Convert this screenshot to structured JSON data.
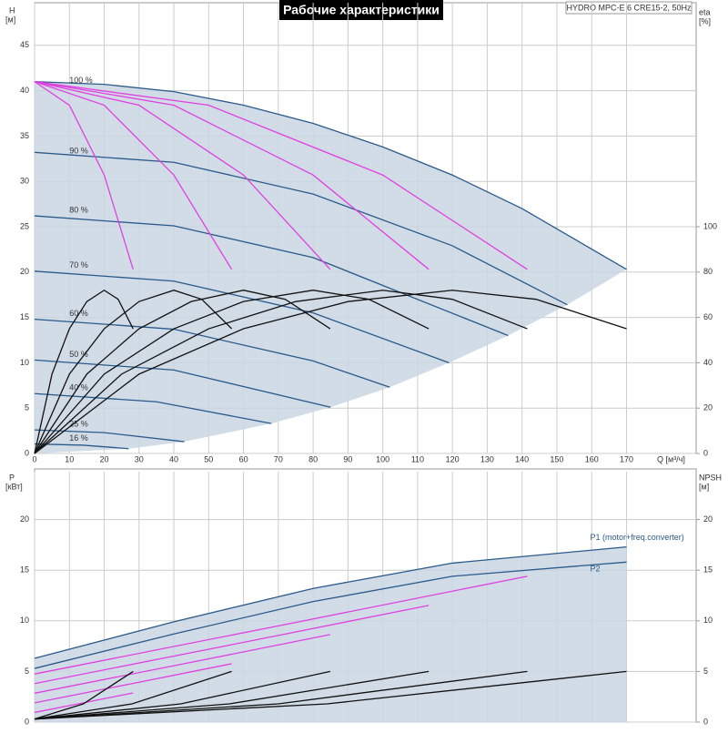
{
  "chart_data": [
    {
      "type": "line",
      "title": "Рабочие характеристики",
      "annotation": "HYDRO MPC-E 6 CRE15-2, 50Hz",
      "ylabel": "H",
      "yunit": "[м]",
      "y2label": "eta",
      "y2unit": "[%]",
      "xlabel": "Q [м³/ч]",
      "xlim": [
        0,
        190
      ],
      "xticks": [
        0,
        10,
        20,
        30,
        40,
        50,
        60,
        70,
        80,
        90,
        100,
        110,
        120,
        130,
        140,
        150,
        160,
        170
      ],
      "ylim": [
        0,
        50
      ],
      "yticks": [
        0,
        5,
        10,
        15,
        20,
        25,
        30,
        35,
        40,
        45
      ],
      "y2lim": [
        0,
        200
      ],
      "y2ticks": [
        0,
        20,
        40,
        60,
        80,
        100
      ],
      "grid": true,
      "series": [
        {
          "name": "100 %",
          "color": "#2a5a8a",
          "x": [
            0,
            20,
            40,
            60,
            80,
            100,
            120,
            140,
            170
          ],
          "values": [
            41,
            40.7,
            39.9,
            38.4,
            36.4,
            33.8,
            30.7,
            27.0,
            20.3
          ]
        },
        {
          "name": "90 %",
          "color": "#2a5a8a",
          "x": [
            0,
            40,
            80,
            120,
            153
          ],
          "values": [
            33.2,
            32.1,
            28.6,
            22.9,
            16.4
          ]
        },
        {
          "name": "80 %",
          "color": "#2a5a8a",
          "x": [
            0,
            40,
            80,
            136
          ],
          "values": [
            26.2,
            25.1,
            21.6,
            13.0
          ]
        },
        {
          "name": "70 %",
          "color": "#2a5a8a",
          "x": [
            0,
            40,
            80,
            119
          ],
          "values": [
            20.1,
            19.0,
            15.5,
            10.0
          ]
        },
        {
          "name": "60 %",
          "color": "#2a5a8a",
          "x": [
            0,
            40,
            80,
            102
          ],
          "values": [
            14.8,
            13.7,
            10.2,
            7.3
          ]
        },
        {
          "name": "50 %",
          "color": "#2a5a8a",
          "x": [
            0,
            40,
            85
          ],
          "values": [
            10.3,
            9.2,
            5.1
          ]
        },
        {
          "name": "40 %",
          "color": "#2a5a8a",
          "x": [
            0,
            35,
            68
          ],
          "values": [
            6.6,
            5.7,
            3.3
          ]
        },
        {
          "name": "25 %",
          "color": "#2a5a8a",
          "x": [
            0,
            20,
            43
          ],
          "values": [
            2.6,
            2.3,
            1.3
          ]
        },
        {
          "name": "16 %",
          "color": "#2a5a8a",
          "x": [
            0,
            14,
            27
          ],
          "values": [
            1.05,
            0.91,
            0.53
          ]
        },
        {
          "color": "#e040e0",
          "x": [
            0,
            10,
            20,
            28.3
          ],
          "values": [
            41,
            38.4,
            30.7,
            20.3
          ]
        },
        {
          "color": "#e040e0",
          "x": [
            0,
            20,
            40,
            56.6
          ],
          "values": [
            41,
            38.4,
            30.7,
            20.3
          ]
        },
        {
          "color": "#e040e0",
          "x": [
            0,
            30,
            60,
            84.9
          ],
          "values": [
            41,
            38.4,
            30.7,
            20.3
          ]
        },
        {
          "color": "#e040e0",
          "x": [
            0,
            40,
            80,
            113.2
          ],
          "values": [
            41,
            38.4,
            30.7,
            20.3
          ]
        },
        {
          "color": "#e040e0",
          "x": [
            0,
            50,
            100,
            141.5
          ],
          "values": [
            41,
            38.4,
            30.7,
            20.3
          ]
        },
        {
          "color": "#111111",
          "axis": "y2",
          "x": [
            0,
            5,
            10,
            15,
            20,
            24,
            28.3
          ],
          "values": [
            0,
            35,
            55,
            67,
            72,
            68,
            55
          ]
        },
        {
          "color": "#111111",
          "axis": "y2",
          "x": [
            0,
            10,
            20,
            30,
            40,
            48,
            56.6
          ],
          "values": [
            0,
            35,
            55,
            67,
            72,
            68,
            55
          ]
        },
        {
          "color": "#111111",
          "axis": "y2",
          "x": [
            0,
            15,
            30,
            45,
            60,
            72,
            84.9
          ],
          "values": [
            0,
            35,
            55,
            67,
            72,
            68,
            55
          ]
        },
        {
          "color": "#111111",
          "axis": "y2",
          "x": [
            0,
            20,
            40,
            60,
            80,
            96,
            113.2
          ],
          "values": [
            0,
            35,
            55,
            67,
            72,
            68,
            55
          ]
        },
        {
          "color": "#111111",
          "axis": "y2",
          "x": [
            0,
            25,
            50,
            75,
            100,
            120,
            141.5
          ],
          "values": [
            0,
            35,
            55,
            67,
            72,
            68,
            55
          ]
        },
        {
          "color": "#111111",
          "axis": "y2",
          "x": [
            0,
            30,
            60,
            90,
            120,
            144,
            170
          ],
          "values": [
            0,
            35,
            55,
            67,
            72,
            68,
            55
          ]
        }
      ]
    },
    {
      "type": "line",
      "ylabel": "P",
      "yunit": "[кВт]",
      "y2label": "NPSH",
      "y2unit": "[м]",
      "xlim": [
        0,
        190
      ],
      "ylim": [
        0,
        25
      ],
      "yticks": [
        0,
        5,
        10,
        15,
        20
      ],
      "y2lim": [
        0,
        25
      ],
      "y2ticks": [
        0,
        5,
        10,
        15,
        20
      ],
      "grid": true,
      "series": [
        {
          "name": "P1 (motor+freq.converter)",
          "color": "#2a5a8a",
          "x": [
            0,
            40,
            80,
            120,
            170
          ],
          "values": [
            6.3,
            9.9,
            13.2,
            15.7,
            17.3
          ]
        },
        {
          "name": "P2",
          "color": "#2a5a8a",
          "x": [
            0,
            40,
            80,
            120,
            170
          ],
          "values": [
            5.3,
            8.7,
            11.9,
            14.4,
            15.8
          ]
        },
        {
          "color": "#e040e0",
          "x": [
            0,
            14,
            28.3
          ],
          "values": [
            0.95,
            1.9,
            2.88
          ]
        },
        {
          "color": "#e040e0",
          "x": [
            0,
            28,
            56.6
          ],
          "values": [
            1.9,
            3.8,
            5.76
          ]
        },
        {
          "color": "#e040e0",
          "x": [
            0,
            42,
            84.9
          ],
          "values": [
            2.85,
            5.7,
            8.64
          ]
        },
        {
          "color": "#e040e0",
          "x": [
            0,
            56,
            113.2
          ],
          "values": [
            3.8,
            7.6,
            11.52
          ]
        },
        {
          "color": "#e040e0",
          "x": [
            0,
            70,
            141.5
          ],
          "values": [
            4.75,
            9.5,
            14.4
          ]
        },
        {
          "color": "#111111",
          "axis": "y2",
          "x": [
            0,
            14,
            28.3
          ],
          "values": [
            0.3,
            1.8,
            5.0
          ]
        },
        {
          "color": "#111111",
          "axis": "y2",
          "x": [
            0,
            28,
            56.6
          ],
          "values": [
            0.3,
            1.8,
            5.0
          ]
        },
        {
          "color": "#111111",
          "axis": "y2",
          "x": [
            0,
            42,
            84.9
          ],
          "values": [
            0.3,
            1.8,
            5.0
          ]
        },
        {
          "color": "#111111",
          "axis": "y2",
          "x": [
            0,
            56,
            113.2
          ],
          "values": [
            0.3,
            1.8,
            5.0
          ]
        },
        {
          "color": "#111111",
          "axis": "y2",
          "x": [
            0,
            70,
            141.5
          ],
          "values": [
            0.3,
            1.8,
            5.0
          ]
        },
        {
          "color": "#111111",
          "axis": "y2",
          "x": [
            0,
            84,
            170
          ],
          "values": [
            0.3,
            1.8,
            5.0
          ]
        }
      ]
    }
  ]
}
